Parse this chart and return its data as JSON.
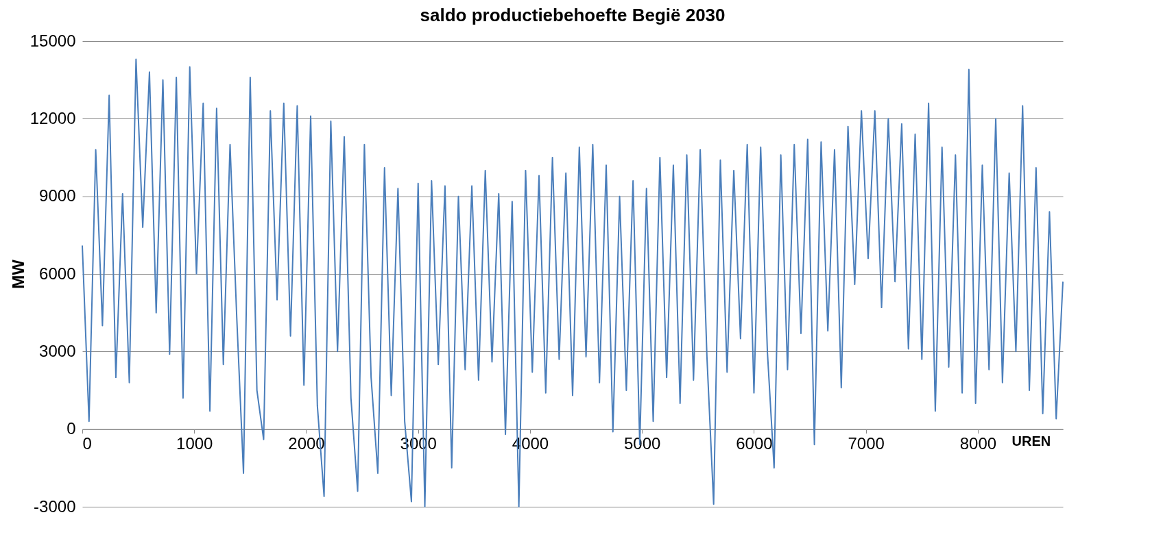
{
  "chart_data": {
    "type": "line",
    "title": "saldo productiebehoefte Begië 2030",
    "xlabel": "UREN",
    "ylabel": "MW",
    "x": [
      0,
      60,
      120,
      180,
      240,
      300,
      360,
      420,
      480,
      540,
      600,
      660,
      720,
      780,
      840,
      900,
      960,
      1020,
      1080,
      1140,
      1200,
      1260,
      1320,
      1380,
      1440,
      1500,
      1560,
      1620,
      1680,
      1740,
      1800,
      1860,
      1920,
      1980,
      2040,
      2100,
      2160,
      2220,
      2280,
      2340,
      2400,
      2460,
      2520,
      2580,
      2640,
      2700,
      2760,
      2820,
      2880,
      2940,
      3000,
      3060,
      3120,
      3180,
      3240,
      3300,
      3360,
      3420,
      3480,
      3540,
      3600,
      3660,
      3720,
      3780,
      3840,
      3900,
      3960,
      4020,
      4080,
      4140,
      4200,
      4260,
      4320,
      4380,
      4440,
      4500,
      4560,
      4620,
      4680,
      4740,
      4800,
      4860,
      4920,
      4980,
      5040,
      5100,
      5160,
      5220,
      5280,
      5340,
      5400,
      5460,
      5520,
      5580,
      5640,
      5700,
      5760,
      5820,
      5880,
      5940,
      6000,
      6060,
      6120,
      6180,
      6240,
      6300,
      6360,
      6420,
      6480,
      6540,
      6600,
      6660,
      6720,
      6780,
      6840,
      6900,
      6960,
      7020,
      7080,
      7140,
      7200,
      7260,
      7320,
      7380,
      7440,
      7500,
      7560,
      7620,
      7680,
      7740,
      7800,
      7860,
      7920,
      7980,
      8040,
      8100,
      8160,
      8220,
      8280,
      8340,
      8400,
      8460,
      8520,
      8580,
      8640,
      8700,
      8760
    ],
    "series": [
      {
        "color": "#4a7ebb",
        "values": [
          7100,
          300,
          10800,
          4000,
          12900,
          2000,
          9100,
          1800,
          14300,
          7800,
          13800,
          4500,
          13500,
          2900,
          13600,
          1200,
          14000,
          6000,
          12600,
          700,
          12400,
          2500,
          11000,
          4300,
          -1700,
          13600,
          1500,
          -400,
          12300,
          5000,
          12600,
          3600,
          12500,
          1700,
          12100,
          900,
          -2600,
          11900,
          3000,
          11300,
          1200,
          -2400,
          11000,
          2000,
          -1700,
          10100,
          1300,
          9300,
          300,
          -2800,
          9500,
          -3000,
          9600,
          2500,
          9400,
          -1500,
          9000,
          2300,
          9400,
          1900,
          10000,
          2600,
          9100,
          -200,
          8800,
          -3000,
          10000,
          2200,
          9800,
          1400,
          10500,
          2700,
          9900,
          1300,
          10900,
          2800,
          11000,
          1800,
          10200,
          -100,
          9000,
          1500,
          9600,
          -600,
          9300,
          300,
          10500,
          2000,
          10200,
          1000,
          10600,
          1900,
          10800,
          2800,
          -2900,
          10400,
          2200,
          10000,
          3500,
          11000,
          1400,
          10900,
          3000,
          -1500,
          10600,
          2300,
          11000,
          3700,
          11200,
          -600,
          11100,
          3800,
          10800,
          1600,
          11700,
          5600,
          12300,
          6600,
          12300,
          4700,
          12000,
          5700,
          11800,
          3100,
          11400,
          2700,
          12600,
          700,
          10900,
          2400,
          10600,
          1400,
          13900,
          1000,
          10200,
          2300,
          12000,
          1800,
          9900,
          3000,
          12500,
          1500,
          10100,
          600,
          8400,
          400,
          5700
        ]
      }
    ],
    "xlim": [
      0,
      8760
    ],
    "xticks": [
      0,
      1000,
      2000,
      3000,
      4000,
      5000,
      6000,
      7000,
      8000
    ],
    "ylim": [
      -3000,
      15000
    ],
    "yticks": [
      -3000,
      0,
      3000,
      6000,
      9000,
      12000,
      15000
    ],
    "grid": "y",
    "line_style": "solid",
    "marker": "none"
  }
}
